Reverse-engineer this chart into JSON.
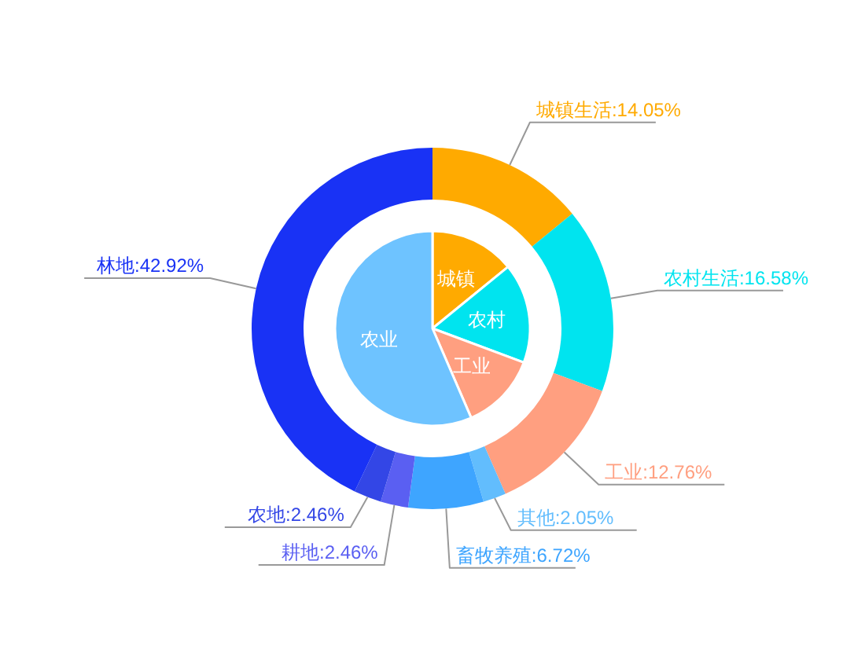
{
  "chart_data": [
    {
      "type": "donut",
      "categories": [
        "城镇生活",
        "农村生活",
        "工业",
        "其他",
        "畜牧养殖",
        "耕地",
        "农地",
        "林地"
      ],
      "values": [
        14.05,
        16.58,
        12.76,
        2.05,
        6.72,
        2.46,
        2.46,
        42.92
      ],
      "colors": [
        "#ffaa00",
        "#00e4ef",
        "#ff9f80",
        "#62bdfd",
        "#3ea5ff",
        "#5a5ff2",
        "#3346e6",
        "#1932f5"
      ],
      "value_labels": [
        ":14.05%",
        ":16.58%",
        ":12.76%",
        ":2.05%",
        ":6.72%",
        ":2.46%",
        ":2.46%",
        ":42.92%"
      ]
    },
    {
      "type": "pie",
      "categories": [
        "城镇",
        "农村",
        "工业",
        "农业"
      ],
      "values": [
        14.1,
        16.6,
        12.8,
        56.5
      ],
      "colors": [
        "#ffaa00",
        "#00e4ef",
        "#ff9f80",
        "#6ec3ff"
      ]
    }
  ]
}
